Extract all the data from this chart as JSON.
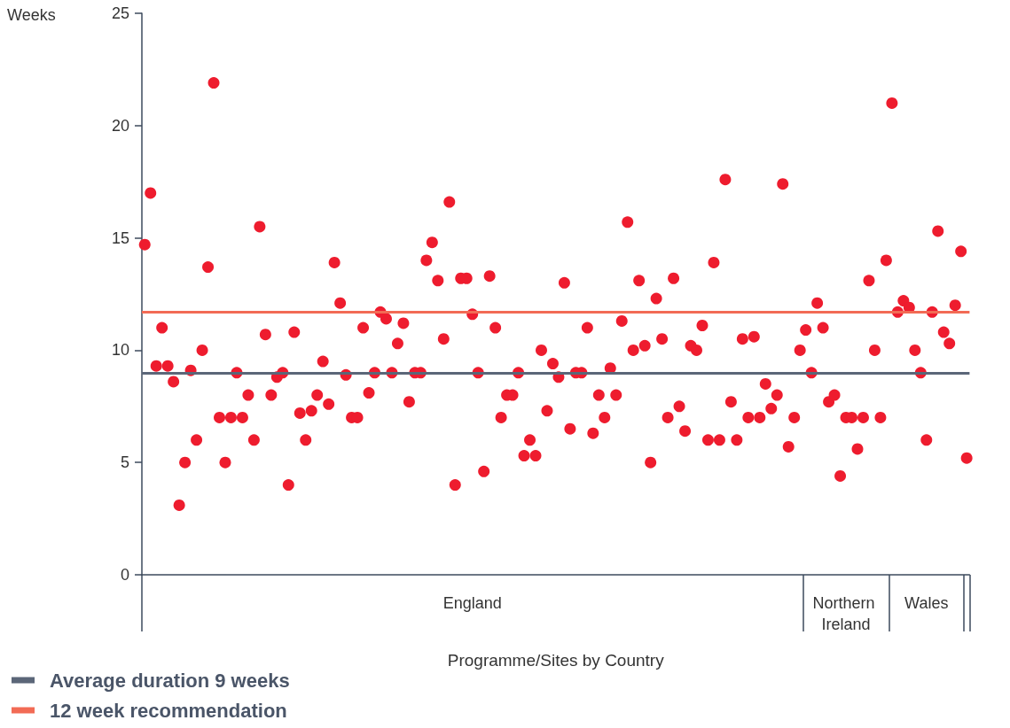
{
  "chart_data": {
    "type": "scatter",
    "ylabel": "Weeks",
    "xlabel": "Programme/Sites by Country",
    "color": "#ee1c2e",
    "marker": "circle",
    "legend": "bottom left",
    "ylim": [
      0,
      25
    ],
    "yticks": [
      0,
      5,
      10,
      15,
      20,
      25
    ],
    "categories": [
      null,
      null,
      null,
      null,
      null,
      null,
      null,
      null,
      null,
      null,
      null,
      null,
      null,
      null,
      null,
      null,
      null,
      null,
      null,
      null,
      null,
      null,
      null,
      null,
      null,
      null,
      null,
      null,
      null,
      null,
      null,
      null,
      null,
      null,
      null,
      null,
      null,
      null,
      null,
      null,
      null,
      null,
      null,
      null,
      null,
      null,
      null,
      null,
      null,
      null,
      null,
      null,
      null,
      null,
      null,
      null,
      null,
      "England",
      null,
      null,
      null,
      null,
      null,
      null,
      null,
      null,
      null,
      null,
      null,
      null,
      null,
      null,
      null,
      null,
      null,
      null,
      null,
      null,
      null,
      null,
      null,
      null,
      null,
      null,
      null,
      null,
      null,
      null,
      null,
      null,
      null,
      null,
      null,
      null,
      null,
      null,
      null,
      null,
      null,
      null,
      null,
      null,
      null,
      null,
      null,
      null,
      null,
      null,
      null,
      null,
      null,
      null,
      null,
      null,
      null,
      null,
      null,
      null,
      null,
      null,
      null,
      null,
      "Northern Ireland",
      null,
      null,
      null,
      null,
      null,
      null,
      null,
      null,
      null,
      null,
      null,
      null,
      null,
      "Wales",
      null,
      null,
      null,
      null,
      null,
      null,
      null
    ],
    "values": [
      14.7,
      17.0,
      9.3,
      11.0,
      9.3,
      8.6,
      3.1,
      5.0,
      9.1,
      6.0,
      10.0,
      13.7,
      21.9,
      7.0,
      5.0,
      7.0,
      9.0,
      7.0,
      8.0,
      6.0,
      15.5,
      10.7,
      8.0,
      8.8,
      9.0,
      4.0,
      10.8,
      7.2,
      6.0,
      7.3,
      8.0,
      9.5,
      7.6,
      13.9,
      12.1,
      8.9,
      7.0,
      7.0,
      11.0,
      8.1,
      9.0,
      11.7,
      11.4,
      9.0,
      10.3,
      11.2,
      7.7,
      9.0,
      9.0,
      14.0,
      14.8,
      13.1,
      10.5,
      16.6,
      4.0,
      13.2,
      13.2,
      11.6,
      9.0,
      4.6,
      13.3,
      11.0,
      7.0,
      8.0,
      8.0,
      9.0,
      5.3,
      6.0,
      5.3,
      10.0,
      7.3,
      9.4,
      8.8,
      13.0,
      6.5,
      9.0,
      9.0,
      11.0,
      6.3,
      8.0,
      7.0,
      9.2,
      8.0,
      11.3,
      15.7,
      10.0,
      13.1,
      10.2,
      5.0,
      12.3,
      10.5,
      7.0,
      13.2,
      7.5,
      6.4,
      10.2,
      10.0,
      11.1,
      6.0,
      13.9,
      6.0,
      17.6,
      7.7,
      6.0,
      10.5,
      7.0,
      10.6,
      7.0,
      8.5,
      7.4,
      8.0,
      17.4,
      5.7,
      7.0,
      10.0,
      10.9,
      9.0,
      12.1,
      11.0,
      7.7,
      8.0,
      4.4,
      7.0,
      7.0,
      5.6,
      7.0,
      13.1,
      10.0,
      7.0,
      14.0,
      21.0,
      11.7,
      12.2,
      11.9,
      10.0,
      9.0,
      6.0,
      11.7,
      15.3,
      10.8,
      10.3,
      12.0,
      14.4,
      5.2
    ],
    "ref_lines": [
      {
        "axis": "y",
        "value": 9,
        "label": "Average duration 9 weeks",
        "color": "#5b6678"
      },
      {
        "axis": "y",
        "value": 11.7,
        "label": "12 week recommendation",
        "color": "#f26b55"
      }
    ]
  }
}
